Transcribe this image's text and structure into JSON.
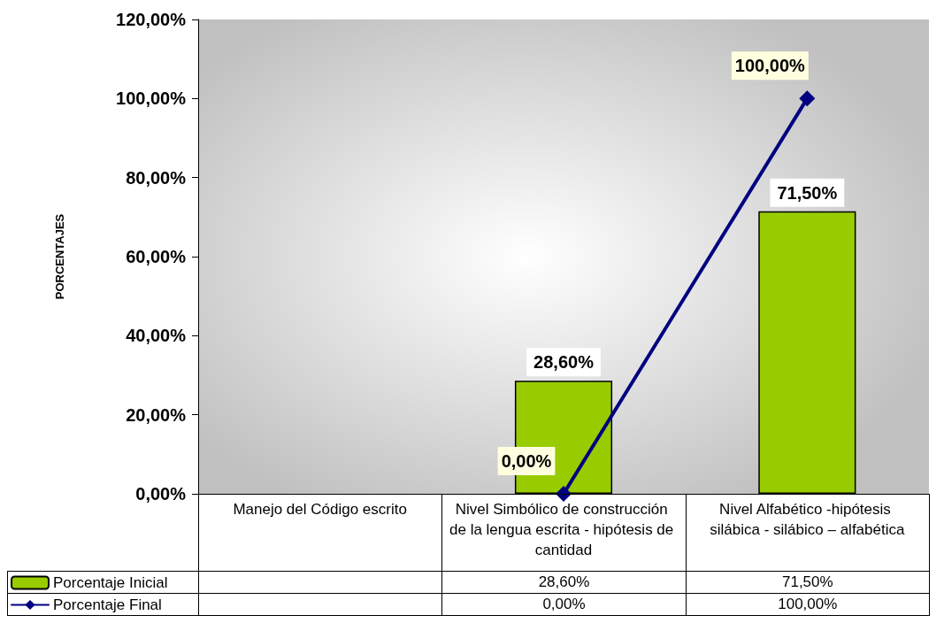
{
  "chart_data": {
    "type": "bar",
    "ylabel": "PORCENTAJES",
    "categories": [
      "Manejo del Código escrito",
      "Nivel Simbólico de construcción de la lengua escrita - hipótesis de cantidad",
      "Nivel Alfabético -hipótesis silábica - silábico – alfabética"
    ],
    "series": [
      {
        "name": "Porcentaje Inicial",
        "color": "#99cc00",
        "values": [
          null,
          28.6,
          71.5
        ],
        "value_labels": [
          null,
          "28,60%",
          "71,50%"
        ]
      },
      {
        "name": "Porcentaje Final",
        "type": "line",
        "color": "#000080",
        "marker": "diamond",
        "line_style": "solid",
        "values": [
          null,
          0,
          100
        ],
        "value_labels": [
          null,
          "0,00%",
          "100,00%"
        ]
      }
    ],
    "ylim": [
      0,
      120
    ],
    "yticks": [
      {
        "value": 0,
        "label": "0,00%"
      },
      {
        "value": 20,
        "label": "20,00%"
      },
      {
        "value": 40,
        "label": "40,00%"
      },
      {
        "value": 60,
        "label": "60,00%"
      },
      {
        "value": 80,
        "label": "80,00%"
      },
      {
        "value": 100,
        "label": "100,00%"
      },
      {
        "value": 120,
        "label": "120,00%"
      }
    ],
    "grid": false,
    "legend": "bottom left"
  }
}
